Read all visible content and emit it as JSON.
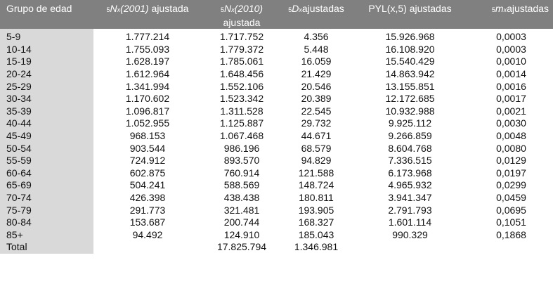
{
  "header": {
    "col0": "Grupo de edad",
    "col1": {
      "sub": "5",
      "sym": "N",
      "symsub": "x",
      "year": "(2001)",
      "rest": " ajustada"
    },
    "col2": {
      "sub": "5",
      "sym": "N",
      "symsub": "x",
      "year": "(2010)",
      "rest": "ajustada"
    },
    "col3": {
      "sub": "5",
      "sym": "D",
      "symsub": "x",
      "rest": "ajustadas"
    },
    "col4": "PYL(x,5) ajustadas",
    "col5": {
      "sub": "5",
      "sym": "m",
      "symsub": "x",
      "rest": "ajustadas"
    }
  },
  "rows": [
    {
      "group": "5-9",
      "n2001": "1.777.214",
      "n2010": "1.717.752",
      "d": "4.356",
      "pyl": "15.926.968",
      "m": "0,0003"
    },
    {
      "group": "10-14",
      "n2001": "1.755.093",
      "n2010": "1.779.372",
      "d": "5.448",
      "pyl": "16.108.920",
      "m": "0,0003"
    },
    {
      "group": "15-19",
      "n2001": "1.628.197",
      "n2010": "1.785.061",
      "d": "16.059",
      "pyl": "15.540.429",
      "m": "0,0010"
    },
    {
      "group": "20-24",
      "n2001": "1.612.964",
      "n2010": "1.648.456",
      "d": "21.429",
      "pyl": "14.863.942",
      "m": "0,0014"
    },
    {
      "group": "25-29",
      "n2001": "1.341.994",
      "n2010": "1.552.106",
      "d": "20.546",
      "pyl": "13.155.851",
      "m": "0,0016"
    },
    {
      "group": "30-34",
      "n2001": "1.170.602",
      "n2010": "1.523.342",
      "d": "20.389",
      "pyl": "12.172.685",
      "m": "0,0017"
    },
    {
      "group": "35-39",
      "n2001": "1.096.817",
      "n2010": "1.311.528",
      "d": "22.545",
      "pyl": "10.932.988",
      "m": "0,0021"
    },
    {
      "group": "40-44",
      "n2001": "1.052.955",
      "n2010": "1.125.887",
      "d": "29.732",
      "pyl": "9.925.112",
      "m": "0,0030"
    },
    {
      "group": "45-49",
      "n2001": "968.153",
      "n2010": "1.067.468",
      "d": "44.671",
      "pyl": "9.266.859",
      "m": "0,0048"
    },
    {
      "group": "50-54",
      "n2001": "903.544",
      "n2010": "986.196",
      "d": "68.579",
      "pyl": "8.604.768",
      "m": "0,0080"
    },
    {
      "group": "55-59",
      "n2001": "724.912",
      "n2010": "893.570",
      "d": "94.829",
      "pyl": "7.336.515",
      "m": "0,0129"
    },
    {
      "group": "60-64",
      "n2001": "602.875",
      "n2010": "760.914",
      "d": "121.588",
      "pyl": "6.173.968",
      "m": "0,0197"
    },
    {
      "group": "65-69",
      "n2001": "504.241",
      "n2010": "588.569",
      "d": "148.724",
      "pyl": "4.965.932",
      "m": "0,0299"
    },
    {
      "group": "70-74",
      "n2001": "426.398",
      "n2010": "438.438",
      "d": "180.811",
      "pyl": "3.941.347",
      "m": "0,0459"
    },
    {
      "group": "75-79",
      "n2001": "291.773",
      "n2010": "321.481",
      "d": "193.905",
      "pyl": "2.791.793",
      "m": "0,0695"
    },
    {
      "group": "80-84",
      "n2001": "153.687",
      "n2010": "200.744",
      "d": "168.327",
      "pyl": "1.601.114",
      "m": "0,1051"
    },
    {
      "group": "85+",
      "n2001": "94.492",
      "n2010": "124.910",
      "d": "185.043",
      "pyl": "990.329",
      "m": "0,1868"
    },
    {
      "group": "Total",
      "n2001": "",
      "n2010": "17.825.794",
      "d": "1.346.981",
      "pyl": "",
      "m": ""
    }
  ]
}
